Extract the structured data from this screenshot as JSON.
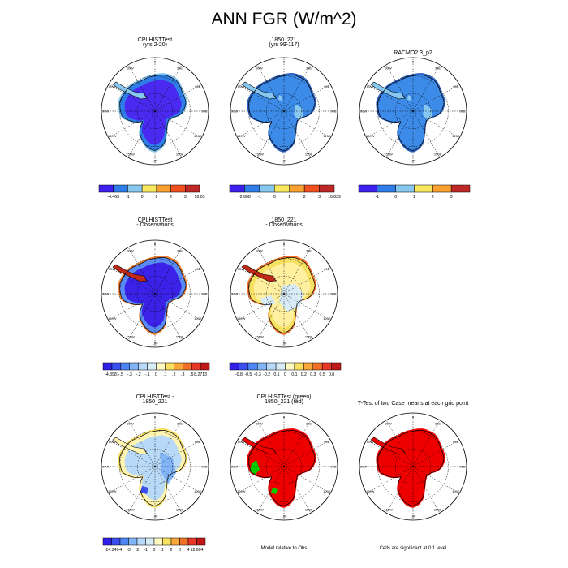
{
  "figure": {
    "title": "ANN FGR (W/m^2)"
  },
  "chart_data": [
    {
      "id": "p1",
      "type": "heatmap",
      "title": [
        "CPLHISTTest",
        "(yrs 2-20)"
      ],
      "projection": "south-polar-stereographic",
      "lon_labels": [
        "0",
        "30E",
        "60E",
        "90E",
        "120E",
        "150E",
        "180",
        "150W",
        "120W",
        "90W",
        "60W",
        "30W"
      ],
      "colorbar": {
        "ticks": [
          "-4.463",
          "-1",
          "0",
          "1",
          "2",
          "3",
          "18.03"
        ],
        "colors": [
          "#3f1ff0",
          "#2e7de8",
          "#86c8f0",
          "#f8e860",
          "#f8a030",
          "#f05020",
          "#c02828"
        ]
      }
    },
    {
      "id": "p2",
      "type": "heatmap",
      "title": [
        "1850_221",
        "(yrs 99-117)"
      ],
      "projection": "south-polar-stereographic",
      "lon_labels": [
        "0",
        "30E",
        "60E",
        "90E",
        "120E",
        "150E",
        "180",
        "150W",
        "120W",
        "90W",
        "60W",
        "30W"
      ],
      "colorbar": {
        "ticks": [
          "-2.868",
          "-1",
          "0",
          "1",
          "2",
          "3",
          "16.839"
        ],
        "colors": [
          "#3f1ff0",
          "#2e7de8",
          "#86c8f0",
          "#f8e860",
          "#f8a030",
          "#f05020",
          "#c02828"
        ]
      }
    },
    {
      "id": "p3",
      "type": "heatmap",
      "title": [
        "RACMO2.3_p2"
      ],
      "projection": "south-polar-stereographic",
      "lon_labels": [
        "0",
        "30E",
        "60E",
        "90E",
        "120E",
        "150E",
        "180",
        "150W",
        "120W",
        "90W",
        "60W",
        "30W"
      ],
      "colorbar": {
        "ticks": [
          "-1",
          "0",
          "1",
          "2",
          "3"
        ],
        "colors": [
          "#3f1ff0",
          "#2e7de8",
          "#86c8f0",
          "#f8e860",
          "#f8a030",
          "#c02828"
        ]
      }
    },
    {
      "id": "p4",
      "type": "heatmap",
      "title": [
        "CPLHISTTest",
        "- Observations"
      ],
      "projection": "south-polar-stereographic",
      "lon_labels": [
        "0",
        "30E",
        "60E",
        "90E",
        "120E",
        "150E",
        "180",
        "150W",
        "120W",
        "90W",
        "60W",
        "30W"
      ],
      "colorbar": {
        "ticks": [
          "-4.3981",
          "-.5",
          "-.3",
          "-.2",
          "-.1",
          "0",
          ".1",
          ".2",
          ".3",
          ".5",
          "8.2713"
        ],
        "colors": [
          "#3020e8",
          "#3c50f0",
          "#4f86f6",
          "#82b4f8",
          "#b8daf8",
          "#d8ecf8",
          "#fff8c0",
          "#f8e060",
          "#f8a838",
          "#f07028",
          "#e83828",
          "#c01818"
        ]
      }
    },
    {
      "id": "p5",
      "type": "heatmap",
      "title": [
        "1850_221",
        "- Observations"
      ],
      "projection": "south-polar-stereographic",
      "lon_labels": [
        "0",
        "30E",
        "60E",
        "90E",
        "120E",
        "150E",
        "180",
        "150W",
        "120W",
        "90W",
        "60W",
        "30W"
      ],
      "colorbar": {
        "ticks": [
          "-0.8",
          "-0.5",
          "-0.3",
          "-0.2",
          "-0.1",
          "0",
          "0.1",
          "0.2",
          "0.3",
          "0.5",
          "0.8"
        ],
        "colors": [
          "#3020e8",
          "#3c50f0",
          "#4f86f6",
          "#82b4f8",
          "#b8daf8",
          "#d8ecf8",
          "#fff8c0",
          "#f8e060",
          "#f8a838",
          "#f07028",
          "#e83828",
          "#c01818"
        ]
      }
    },
    {
      "id": "p7",
      "type": "heatmap",
      "title": [
        "CPLHISTTest -",
        "1850_221"
      ],
      "projection": "south-polar-stereographic",
      "lon_labels": [
        "0",
        "30E",
        "60E",
        "90E",
        "120E",
        "150E",
        "180",
        "150W",
        "120W",
        "90W",
        "60W",
        "30W"
      ],
      "colorbar": {
        "ticks": [
          "-14.347",
          "-4",
          "-3",
          "-2",
          "-1",
          "0",
          "1",
          "2",
          "3",
          "4",
          "12.604"
        ],
        "colors": [
          "#3020e8",
          "#3c50f0",
          "#4f86f6",
          "#82b4f8",
          "#b8daf8",
          "#d8ecf8",
          "#fff8c0",
          "#f8e060",
          "#f8a838",
          "#f07028",
          "#e83828",
          "#c01818"
        ]
      }
    },
    {
      "id": "p8",
      "type": "heatmap",
      "title": [
        "CPLHISTTest (green)",
        "1850_221 (red)"
      ],
      "projection": "south-polar-stereographic",
      "lon_labels": [
        "0",
        "30E",
        "60E",
        "90E",
        "120E",
        "150E",
        "180",
        "150W",
        "120W",
        "90W",
        "60W",
        "30W"
      ],
      "note": "Model relative to Obs"
    },
    {
      "id": "p9",
      "type": "heatmap",
      "title": [
        "T-Test of two Case means at each grid point"
      ],
      "projection": "south-polar-stereographic",
      "lon_labels": [
        "0",
        "30E",
        "60E",
        "90E",
        "120E",
        "150E",
        "180",
        "150W",
        "120W",
        "90W",
        "60W",
        "30W"
      ],
      "note": "Cells are significant at 0.1 level"
    }
  ]
}
